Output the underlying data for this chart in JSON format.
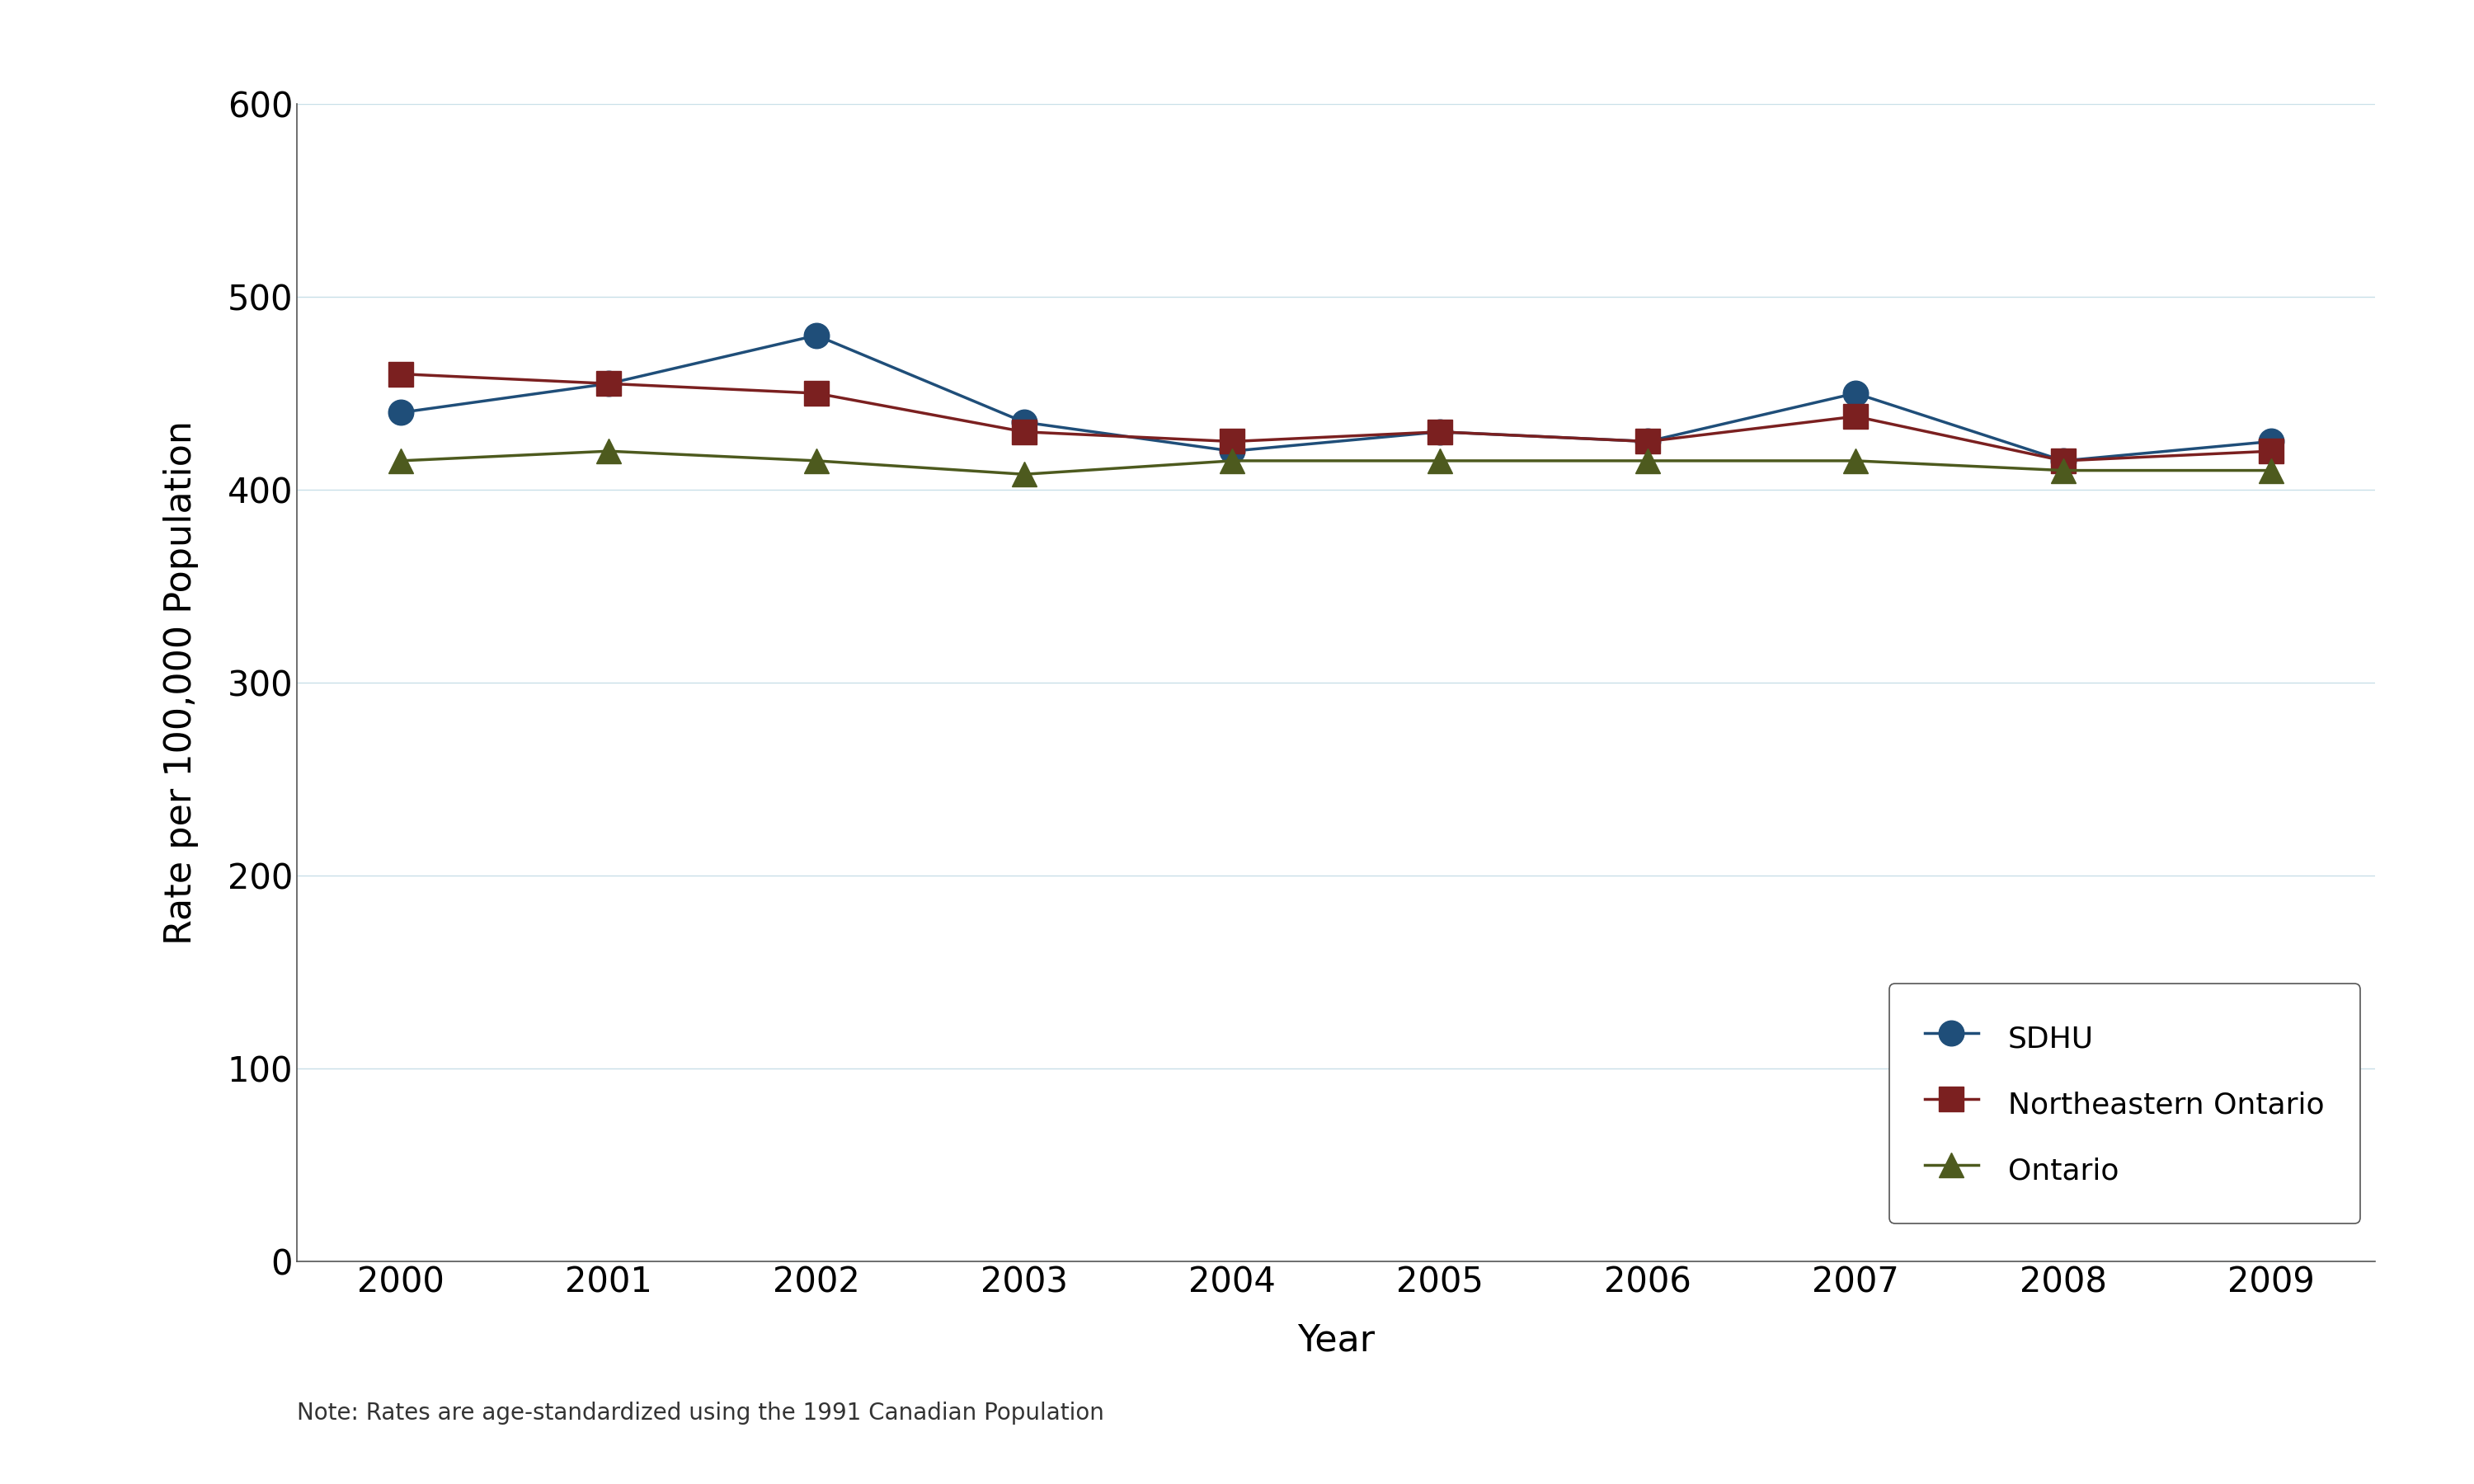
{
  "years": [
    2000,
    2001,
    2002,
    2003,
    2004,
    2005,
    2006,
    2007,
    2008,
    2009
  ],
  "sdhu": [
    440,
    455,
    480,
    435,
    420,
    430,
    425,
    450,
    415,
    425
  ],
  "northeastern": [
    460,
    455,
    450,
    430,
    425,
    430,
    425,
    438,
    415,
    420
  ],
  "ontario": [
    415,
    420,
    415,
    408,
    415,
    415,
    415,
    415,
    410,
    410
  ],
  "sdhu_color": "#1f4e79",
  "northeastern_color": "#7b2020",
  "ontario_color": "#4d5a1e",
  "grid_color": "#c8dfe8",
  "ylabel": "Rate per 100,000 Population",
  "xlabel": "Year",
  "legend_labels": [
    "SDHU",
    "Northeastern Ontario",
    "Ontario"
  ],
  "note": "Note: Rates are age-standardized using the 1991 Canadian Population",
  "ylim_min": 0,
  "ylim_max": 600,
  "yticks": [
    0,
    100,
    200,
    300,
    400,
    500,
    600
  ],
  "xlim_min": 1999.5,
  "xlim_max": 2009.5,
  "line_width": 2.5,
  "marker_size": 22
}
